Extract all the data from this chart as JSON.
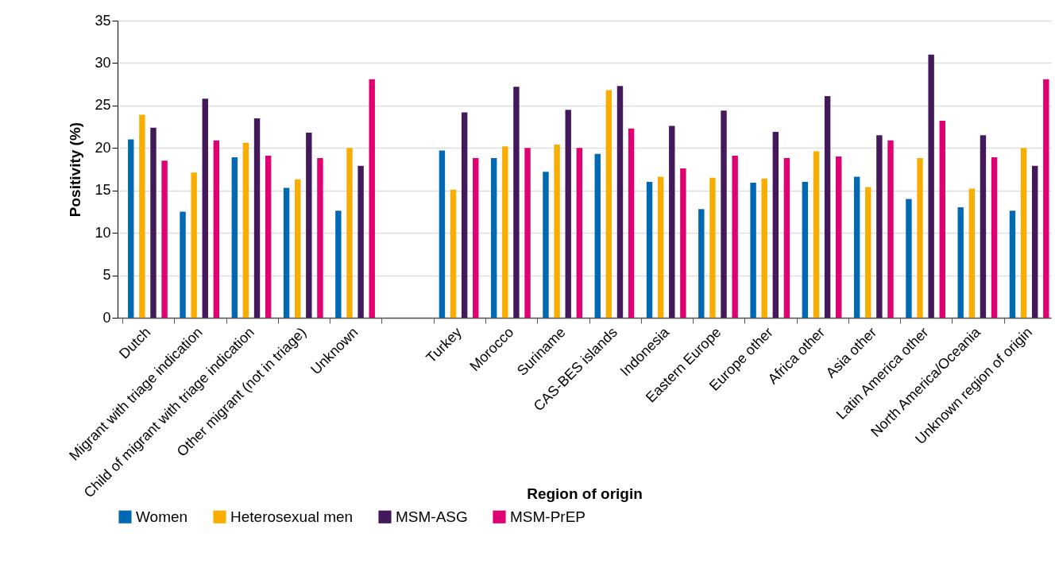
{
  "chart_data": {
    "type": "bar",
    "xlabel": "Region of origin",
    "ylabel": "Positivity (%)",
    "categories": [
      "Dutch",
      "Migrant with triage indication",
      "Child of migrant with triage indication",
      "Other migrant (not in triage)",
      "Unknown",
      null,
      "Turkey",
      "Morocco",
      "Suriname",
      "CAS-BES islands",
      "Indonesia",
      "Eastern Europe",
      "Europe other",
      "Africa other",
      "Asia other",
      "Latin America other",
      "North America/Oceania",
      "Unknown region of origin"
    ],
    "series": [
      {
        "name": "Women",
        "color": "#0069b4",
        "values": [
          21.0,
          12.5,
          18.9,
          15.3,
          12.6,
          null,
          19.7,
          18.8,
          17.2,
          19.3,
          16.0,
          12.8,
          15.9,
          16.0,
          16.6,
          14.0,
          13.0,
          12.6
        ]
      },
      {
        "name": "Heterosexual men",
        "color": "#f9ad00",
        "values": [
          23.9,
          17.1,
          20.6,
          16.3,
          20.0,
          null,
          15.1,
          20.2,
          20.4,
          26.8,
          16.6,
          16.5,
          16.4,
          19.6,
          15.4,
          18.8,
          15.2,
          20.0
        ]
      },
      {
        "name": "MSM-ASG",
        "color": "#42195a",
        "values": [
          22.4,
          25.8,
          23.5,
          21.8,
          17.9,
          null,
          24.2,
          27.2,
          24.5,
          27.3,
          22.6,
          24.4,
          21.9,
          26.1,
          21.5,
          31.0,
          21.5,
          17.9
        ]
      },
      {
        "name": "MSM-PrEP",
        "color": "#e10071",
        "values": [
          18.5,
          20.9,
          19.1,
          18.8,
          28.1,
          null,
          18.8,
          20.0,
          20.0,
          22.3,
          17.6,
          19.1,
          18.8,
          19.0,
          20.9,
          23.2,
          18.9,
          28.1
        ]
      }
    ],
    "ylim": [
      0,
      35
    ],
    "yticks": [
      0,
      5,
      10,
      15,
      20,
      25,
      30,
      35
    ],
    "grid": "y",
    "legend": "bottom"
  }
}
